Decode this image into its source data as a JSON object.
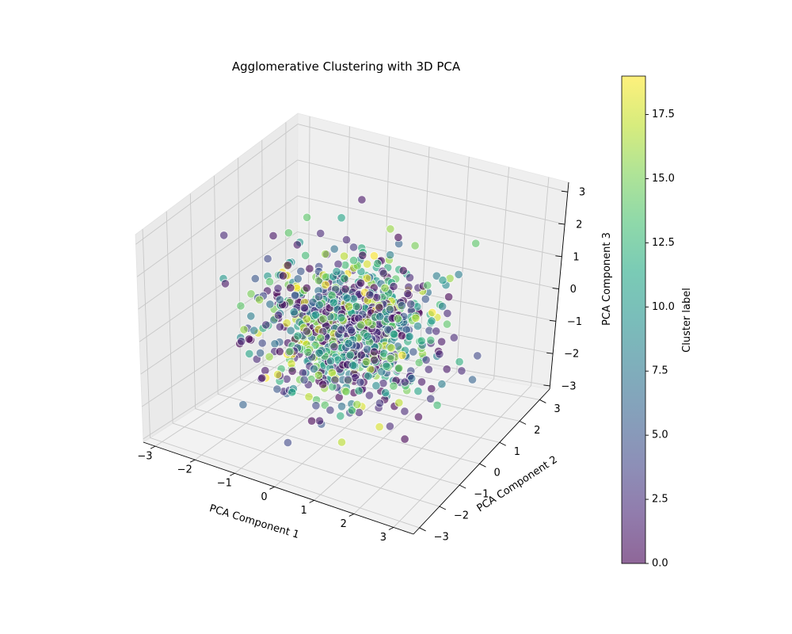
{
  "chart_data": {
    "type": "scatter",
    "projection": "3d",
    "title": "Agglomerative Clustering with 3D PCA",
    "xlabel": "PCA Component 1",
    "ylabel": "PCA Component 2",
    "zlabel": "PCA Component 3",
    "xlim": [
      -3.3,
      3.5
    ],
    "ylim": [
      -3.3,
      3.5
    ],
    "zlim": [
      -3.1,
      3.3
    ],
    "x_ticks": [
      -3,
      -2,
      -1,
      0,
      1,
      2,
      3
    ],
    "y_ticks": [
      -3,
      -2,
      -1,
      0,
      1,
      2,
      3
    ],
    "z_ticks": [
      -3,
      -2,
      -1,
      0,
      1,
      2,
      3
    ],
    "x_tick_labels": [
      "−3",
      "−2",
      "−1",
      "0",
      "1",
      "2",
      "3"
    ],
    "y_tick_labels": [
      "−3",
      "−2",
      "−1",
      "0",
      "1",
      "2",
      "3"
    ],
    "z_tick_labels": [
      "−3",
      "−2",
      "−1",
      "0",
      "1",
      "2",
      "3"
    ],
    "grid": true,
    "colormap": "viridis",
    "marker_alpha": 0.6,
    "colorbar": {
      "label": "Cluster label",
      "range": [
        0,
        19
      ],
      "ticks": [
        0.0,
        2.5,
        5.0,
        7.5,
        10.0,
        12.5,
        15.0,
        17.5
      ],
      "tick_labels": [
        "0.0",
        "2.5",
        "5.0",
        "7.5",
        "10.0",
        "12.5",
        "15.0",
        "17.5"
      ]
    },
    "n_points": 1000,
    "distribution": "approximately standard normal in each component",
    "n_clusters": 20,
    "seed": 12345
  }
}
